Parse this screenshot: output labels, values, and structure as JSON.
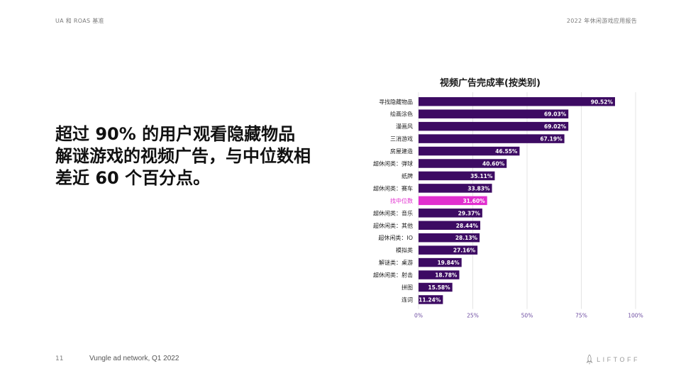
{
  "header": {
    "left": "UA 和 ROAS 基准",
    "right": "2022 年休闲游戏应用报告"
  },
  "headline": "超过 90% 的用户观看隐藏物品解谜游戏的视频广告，与中位数相差近 60 个百分点。",
  "footer": {
    "page_number": "11",
    "source": "Vungle ad network, Q1 2022",
    "brand": "LIFTOFF"
  },
  "colors": {
    "bar": "#3d0b63",
    "highlight_bar": "#e12fcf",
    "highlight_label": "#e12fcf",
    "axis_label": "#6b4aa0",
    "grid": "#dddddd"
  },
  "chart_data": {
    "type": "bar",
    "orientation": "horizontal",
    "title": "视频广告完成率(按类别)",
    "categories": [
      "寻找隐藏物品",
      "绘画涂色",
      "漫画风",
      "三消游戏",
      "房屋建造",
      "超休闲类：弹球",
      "纸牌",
      "超休闲类：赛车",
      "找中位数",
      "超休闲类：音乐",
      "超休闲类：其他",
      "超休闲类：IO",
      "模拟类",
      "解谜类：桌游",
      "超休闲类：射击",
      "拼图",
      "连词"
    ],
    "values": [
      90.52,
      69.03,
      69.02,
      67.19,
      46.55,
      40.6,
      35.11,
      33.83,
      31.6,
      29.37,
      28.44,
      28.13,
      27.16,
      19.84,
      18.78,
      15.58,
      11.24
    ],
    "value_labels": [
      "90.52%",
      "69.03%",
      "69.02%",
      "67.19%",
      "46.55%",
      "40.60%",
      "35.11%",
      "33.83%",
      "31.60%",
      "29.37%",
      "28.44%",
      "28.13%",
      "27.16%",
      "19.84%",
      "18.78%",
      "15.58%",
      "11.24%"
    ],
    "highlight_category": "找中位数",
    "xlim": [
      0,
      100
    ],
    "xticks": [
      "0%",
      "25%",
      "50%",
      "75%",
      "100%"
    ],
    "grid": true,
    "legend": "none"
  }
}
